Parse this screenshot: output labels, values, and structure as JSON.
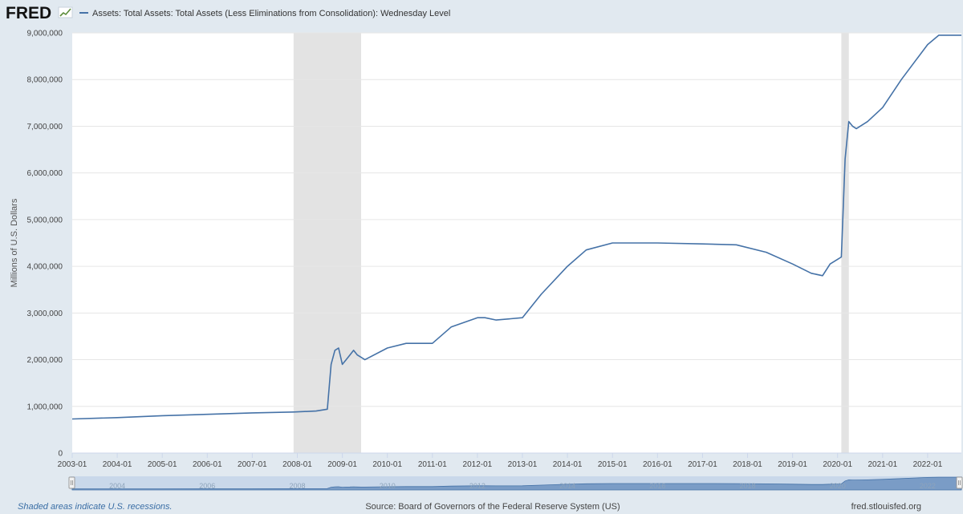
{
  "header": {
    "logo_text": "FRED",
    "logo_icon": "fred-graph-icon",
    "series_label": "Assets: Total Assets: Total Assets (Less Eliminations from Consolidation): Wednesday Level"
  },
  "footer": {
    "recession_note": "Shaded areas indicate U.S. recessions.",
    "source": "Source: Board of Governors of the Federal Reserve System (US)",
    "site": "fred.stlouisfed.org"
  },
  "navigator": {
    "labels": [
      "2004",
      "2006",
      "2008",
      "2010",
      "2012",
      "2014",
      "2016",
      "2018",
      "2020",
      "2022"
    ]
  },
  "colors": {
    "line": "#4572a7",
    "background": "#e1e9f0",
    "plot": "#ffffff",
    "recession": "#e3e3e3",
    "grid": "#e6e6e6"
  },
  "chart_data": {
    "type": "line",
    "title": "",
    "xlabel": "",
    "ylabel": "Millions of U.S. Dollars",
    "xlim": [
      "2003-01",
      "2022-10"
    ],
    "ylim": [
      0,
      9000000
    ],
    "grid": true,
    "legend_position": "top-left",
    "x_ticks": [
      "2003-01",
      "2004-01",
      "2005-01",
      "2006-01",
      "2007-01",
      "2008-01",
      "2009-01",
      "2010-01",
      "2011-01",
      "2012-01",
      "2013-01",
      "2014-01",
      "2015-01",
      "2016-01",
      "2017-01",
      "2018-01",
      "2019-01",
      "2020-01",
      "2021-01",
      "2022-01"
    ],
    "y_ticks": [
      "0",
      "1,000,000",
      "2,000,000",
      "3,000,000",
      "4,000,000",
      "5,000,000",
      "6,000,000",
      "7,000,000",
      "8,000,000",
      "9,000,000"
    ],
    "y_tick_values": [
      0,
      1000000,
      2000000,
      3000000,
      4000000,
      5000000,
      6000000,
      7000000,
      8000000,
      9000000
    ],
    "recessions": [
      {
        "start": "2007-12",
        "end": "2009-06"
      },
      {
        "start": "2020-02",
        "end": "2020-04"
      }
    ],
    "series": [
      {
        "name": "Assets: Total Assets: Total Assets (Less Eliminations from Consolidation): Wednesday Level",
        "x": [
          "2003-01",
          "2004-01",
          "2005-01",
          "2006-01",
          "2007-01",
          "2007-12",
          "2008-06",
          "2008-09",
          "2008-10",
          "2008-11",
          "2008-12",
          "2009-01",
          "2009-02",
          "2009-03",
          "2009-04",
          "2009-05",
          "2009-06",
          "2009-07",
          "2010-01",
          "2010-06",
          "2011-01",
          "2011-06",
          "2012-01",
          "2012-03",
          "2012-06",
          "2013-01",
          "2013-06",
          "2014-01",
          "2014-06",
          "2015-01",
          "2016-01",
          "2017-01",
          "2017-10",
          "2018-06",
          "2019-01",
          "2019-06",
          "2019-09",
          "2019-11",
          "2020-01",
          "2020-02",
          "2020-03",
          "2020-04",
          "2020-05",
          "2020-06",
          "2020-09",
          "2021-01",
          "2021-06",
          "2022-01",
          "2022-04",
          "2022-10"
        ],
        "y": [
          730000,
          760000,
          800000,
          830000,
          860000,
          880000,
          900000,
          940000,
          1900000,
          2200000,
          2250000,
          1900000,
          2000000,
          2100000,
          2200000,
          2100000,
          2050000,
          2000000,
          2250000,
          2350000,
          2350000,
          2700000,
          2900000,
          2900000,
          2850000,
          2900000,
          3400000,
          4000000,
          4350000,
          4500000,
          4500000,
          4480000,
          4460000,
          4300000,
          4050000,
          3850000,
          3800000,
          4050000,
          4150000,
          4200000,
          6300000,
          7100000,
          7000000,
          6950000,
          7100000,
          7400000,
          8000000,
          8750000,
          8950000,
          8950000
        ]
      }
    ]
  }
}
